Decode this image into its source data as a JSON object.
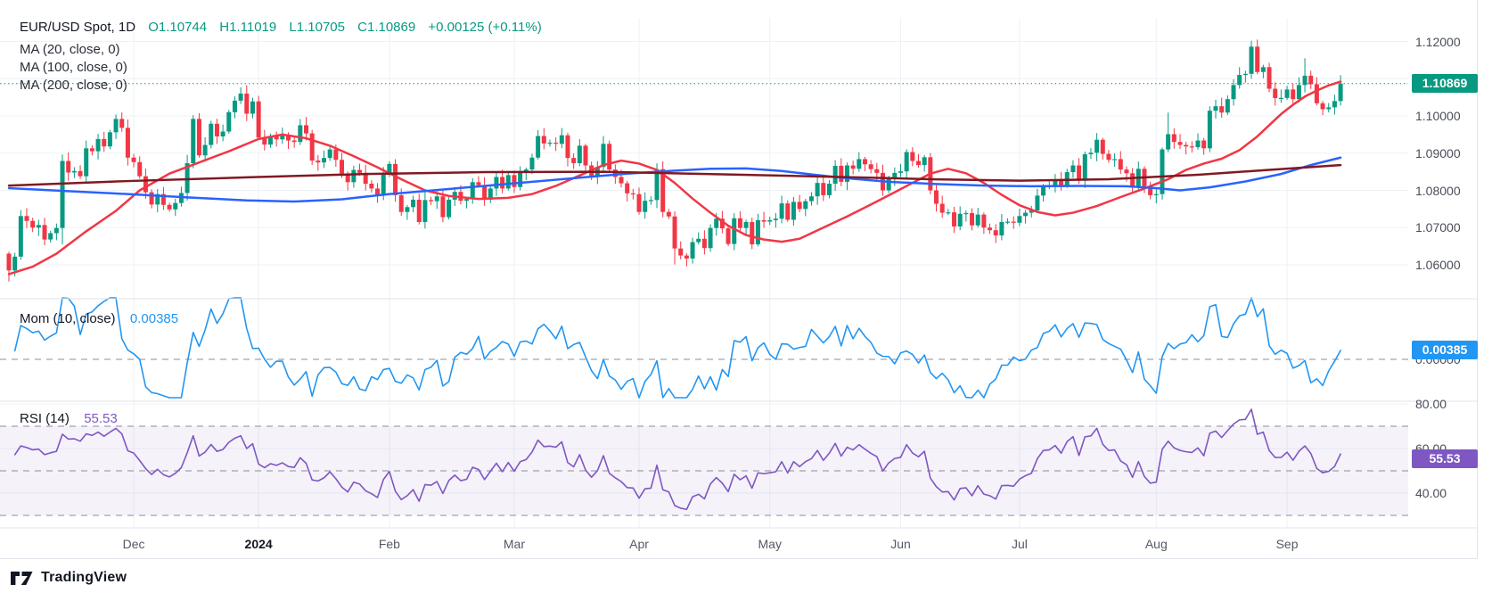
{
  "header": {
    "symbol_tf": "EUR/USD Spot, 1D",
    "open": "O1.10744",
    "high": "H1.11019",
    "low": "L1.10705",
    "close": "C1.10869",
    "change": "+0.00125 (+0.11%)"
  },
  "overlays": [
    {
      "label": "MA (20, close, 0)"
    },
    {
      "label": "MA (100, close, 0)"
    },
    {
      "label": "MA (200, close, 0)"
    }
  ],
  "panes": {
    "momentum": {
      "label": "Mom (10, close)",
      "value": "0.00385"
    },
    "rsi": {
      "label": "RSI (14)",
      "value": "55.53"
    }
  },
  "badges": {
    "price": "1.10869",
    "momentum": "0.00385",
    "rsi": "55.53"
  },
  "axes": {
    "price_ticks": [
      {
        "label": "1.12000",
        "value": 1.12
      },
      {
        "label": "1.11000",
        "value": 1.11
      },
      {
        "label": "1.10000",
        "value": 1.1
      },
      {
        "label": "1.09000",
        "value": 1.09
      },
      {
        "label": "1.08000",
        "value": 1.08
      },
      {
        "label": "1.07000",
        "value": 1.07
      },
      {
        "label": "1.06000",
        "value": 1.06
      }
    ],
    "mom_zero_label": "0.00000",
    "rsi_ticks": [
      {
        "label": "80.00",
        "value": 80
      },
      {
        "label": "60.00",
        "value": 60
      },
      {
        "label": "40.00",
        "value": 40
      }
    ],
    "time_labels": [
      {
        "label": "Dec",
        "bar": 21,
        "bold": false
      },
      {
        "label": "2024",
        "bar": 42,
        "bold": true
      },
      {
        "label": "Feb",
        "bar": 64,
        "bold": false
      },
      {
        "label": "Mar",
        "bar": 85,
        "bold": false
      },
      {
        "label": "Apr",
        "bar": 106,
        "bold": false
      },
      {
        "label": "May",
        "bar": 128,
        "bold": false
      },
      {
        "label": "Jun",
        "bar": 150,
        "bold": false
      },
      {
        "label": "Jul",
        "bar": 170,
        "bold": false
      },
      {
        "label": "Aug",
        "bar": 193,
        "bold": false
      },
      {
        "label": "Sep",
        "bar": 215,
        "bold": false
      }
    ]
  },
  "footer": {
    "brand": "TradingView"
  },
  "colors": {
    "up": "#089981",
    "down": "#f23645",
    "ma20": "#f23645",
    "ma100": "#2962ff",
    "ma200": "#801922",
    "momentum": "#2196f3",
    "rsi": "#7e57c2",
    "rsi_band_fill": "rgba(126,87,194,0.08)",
    "grid": "#eef1f6",
    "divider": "#e0e3eb",
    "dashed": "#8b8e98",
    "last_price_line": "#089981",
    "badge_price_bg": "#089981",
    "badge_mom_bg": "#2196f3",
    "badge_rsi_bg": "#7e57c2"
  },
  "chart_data": [
    {
      "type": "candlestick",
      "title": "EUR/USD Spot, 1D",
      "last_ohlc": {
        "open": 1.10744,
        "high": 1.11019,
        "low": 1.10705,
        "close": 1.10869,
        "change": 0.00125,
        "change_pct": 0.11
      },
      "ylim": [
        1.055,
        1.125
      ],
      "y_ticks": [
        1.12,
        1.11,
        1.1,
        1.09,
        1.08,
        1.07,
        1.06
      ],
      "x_range": [
        "Nov 2023",
        "Sep 2024"
      ],
      "first_open": 1.063,
      "closes": [
        1.0585,
        1.0622,
        1.0731,
        1.0718,
        1.07,
        1.0707,
        1.0668,
        1.0685,
        1.0699,
        1.0879,
        1.0848,
        1.0852,
        1.0838,
        1.0913,
        1.0905,
        1.0938,
        1.0918,
        1.0956,
        1.0992,
        1.0968,
        1.0888,
        1.0876,
        1.0838,
        1.0795,
        1.0762,
        1.079,
        1.0761,
        1.0749,
        1.0766,
        1.0793,
        1.0873,
        1.0992,
        1.0894,
        1.0922,
        1.0979,
        1.0945,
        1.0958,
        1.101,
        1.1041,
        1.106,
        1.1006,
        1.1039,
        1.0942,
        1.0923,
        1.0945,
        1.0937,
        1.095,
        1.0934,
        1.093,
        1.0975,
        1.0953,
        1.088,
        1.0875,
        1.0887,
        1.091,
        1.0882,
        1.0845,
        1.0822,
        1.0855,
        1.0847,
        1.0818,
        1.0805,
        1.0788,
        1.0843,
        1.0871,
        1.0787,
        1.0742,
        1.0755,
        1.0775,
        1.0715,
        1.0774,
        1.0771,
        1.0784,
        1.0728,
        1.0775,
        1.0796,
        1.0772,
        1.0777,
        1.0822,
        1.0814,
        1.0775,
        1.0805,
        1.0836,
        1.0805,
        1.0841,
        1.0809,
        1.0847,
        1.0856,
        1.0888,
        1.0946,
        1.0926,
        1.0928,
        1.0925,
        1.0948,
        1.0887,
        1.0873,
        1.092,
        1.0867,
        1.0839,
        1.0863,
        1.0925,
        1.0856,
        1.0836,
        1.0819,
        1.0792,
        1.079,
        1.0742,
        1.0772,
        1.0774,
        1.0857,
        1.0742,
        1.073,
        1.0644,
        1.0625,
        1.0617,
        1.0661,
        1.067,
        1.0645,
        1.0699,
        1.0724,
        1.0698,
        1.0656,
        1.0725,
        1.0699,
        1.0715,
        1.0655,
        1.072,
        1.0716,
        1.072,
        1.0724,
        1.0765,
        1.0721,
        1.0769,
        1.075,
        1.0771,
        1.0784,
        1.082,
        1.0787,
        1.0818,
        1.0866,
        1.0823,
        1.0867,
        1.0858,
        1.0884,
        1.087,
        1.0857,
        1.0847,
        1.08,
        1.083,
        1.0847,
        1.0851,
        1.0903,
        1.0879,
        1.0868,
        1.0889,
        1.08,
        1.0764,
        1.074,
        1.0741,
        1.0703,
        1.0737,
        1.0739,
        1.0706,
        1.0735,
        1.07,
        1.0693,
        1.0679,
        1.0715,
        1.0716,
        1.0713,
        1.0731,
        1.074,
        1.0746,
        1.0786,
        1.0812,
        1.0814,
        1.0828,
        1.0812,
        1.0849,
        1.0867,
        1.0826,
        1.0897,
        1.0901,
        1.0936,
        1.0898,
        1.0882,
        1.0884,
        1.0856,
        1.0846,
        1.081,
        1.0858,
        1.0811,
        1.0787,
        1.079,
        1.091,
        1.0951,
        1.093,
        1.0922,
        1.0918,
        1.0916,
        1.0934,
        1.0913,
        1.1014,
        1.1026,
        1.1009,
        1.1045,
        1.1083,
        1.111,
        1.1113,
        1.1186,
        1.1118,
        1.1131,
        1.1073,
        1.1048,
        1.10484,
        1.1071,
        1.1045,
        1.1083,
        1.1108,
        1.1085,
        1.1034,
        1.1018,
        1.1023,
        1.104,
        1.10869
      ],
      "special_wicks": {
        "0": {
          "l": 1.0555
        },
        "9": {
          "l": 1.0655
        },
        "112": {
          "l": 1.0601
        },
        "195": {
          "h": 1.1009
        },
        "209": {
          "h": 1.1202
        },
        "218": {
          "h": 1.1155
        }
      },
      "series": [
        {
          "name": "MA (20, close, 0)",
          "color": "#f23645",
          "anchors": [
            [
              0,
              1.0575
            ],
            [
              4,
              1.0595
            ],
            [
              8,
              1.063
            ],
            [
              13,
              1.069
            ],
            [
              18,
              1.0745
            ],
            [
              22,
              1.08
            ],
            [
              27,
              1.0845
            ],
            [
              32,
              1.0875
            ],
            [
              37,
              1.0905
            ],
            [
              42,
              1.0938
            ],
            [
              46,
              1.095
            ],
            [
              50,
              1.094
            ],
            [
              54,
              1.092
            ],
            [
              58,
              1.0892
            ],
            [
              62,
              1.0862
            ],
            [
              66,
              1.083
            ],
            [
              70,
              1.08
            ],
            [
              74,
              1.0785
            ],
            [
              79,
              1.0777
            ],
            [
              84,
              1.078
            ],
            [
              88,
              1.079
            ],
            [
              92,
              1.0812
            ],
            [
              96,
              1.084
            ],
            [
              100,
              1.0868
            ],
            [
              103,
              1.088
            ],
            [
              106,
              1.0872
            ],
            [
              109,
              1.0855
            ],
            [
              112,
              1.082
            ],
            [
              115,
              1.0778
            ],
            [
              118,
              1.074
            ],
            [
              121,
              1.0705
            ],
            [
              124,
              1.068
            ],
            [
              127,
              1.0668
            ],
            [
              130,
              1.0662
            ],
            [
              133,
              1.067
            ],
            [
              137,
              1.07
            ],
            [
              141,
              1.073
            ],
            [
              145,
              1.0762
            ],
            [
              149,
              1.0795
            ],
            [
              152,
              1.082
            ],
            [
              155,
              1.0845
            ],
            [
              158,
              1.0858
            ],
            [
              161,
              1.0846
            ],
            [
              164,
              1.082
            ],
            [
              167,
              1.0788
            ],
            [
              170,
              1.076
            ],
            [
              173,
              1.0742
            ],
            [
              176,
              1.0733
            ],
            [
              179,
              1.074
            ],
            [
              183,
              1.0758
            ],
            [
              187,
              1.0782
            ],
            [
              191,
              1.0805
            ],
            [
              195,
              1.083
            ],
            [
              198,
              1.0855
            ],
            [
              201,
              1.0872
            ],
            [
              204,
              1.0885
            ],
            [
              207,
              1.0908
            ],
            [
              210,
              1.0945
            ],
            [
              212,
              1.0975
            ],
            [
              214,
              1.1005
            ],
            [
              216,
              1.103
            ],
            [
              218,
              1.1052
            ],
            [
              220,
              1.1068
            ],
            [
              222,
              1.1082
            ],
            [
              224,
              1.1092
            ]
          ]
        },
        {
          "name": "MA (100, close, 0)",
          "color": "#2962ff",
          "anchors": [
            [
              0,
              1.0806
            ],
            [
              10,
              1.0798
            ],
            [
              20,
              1.079
            ],
            [
              30,
              1.0781
            ],
            [
              40,
              1.0773
            ],
            [
              48,
              1.077
            ],
            [
              56,
              1.0776
            ],
            [
              64,
              1.079
            ],
            [
              72,
              1.0801
            ],
            [
              80,
              1.0812
            ],
            [
              88,
              1.0823
            ],
            [
              96,
              1.0834
            ],
            [
              104,
              1.0845
            ],
            [
              112,
              1.0853
            ],
            [
              118,
              1.0858
            ],
            [
              124,
              1.0859
            ],
            [
              130,
              1.0852
            ],
            [
              136,
              1.0841
            ],
            [
              142,
              1.0831
            ],
            [
              148,
              1.0823
            ],
            [
              156,
              1.0817
            ],
            [
              164,
              1.0813
            ],
            [
              172,
              1.0811
            ],
            [
              180,
              1.0812
            ],
            [
              188,
              1.0811
            ],
            [
              193,
              1.0806
            ],
            [
              197,
              1.08
            ],
            [
              202,
              1.0808
            ],
            [
              208,
              1.0824
            ],
            [
              214,
              1.0844
            ],
            [
              219,
              1.0868
            ],
            [
              224,
              1.0888
            ]
          ]
        },
        {
          "name": "MA (200, close, 0)",
          "color": "#801922",
          "anchors": [
            [
              0,
              1.0813
            ],
            [
              20,
              1.0825
            ],
            [
              40,
              1.0835
            ],
            [
              60,
              1.0844
            ],
            [
              80,
              1.0849
            ],
            [
              100,
              1.085
            ],
            [
              120,
              1.0843
            ],
            [
              140,
              1.0836
            ],
            [
              155,
              1.083
            ],
            [
              170,
              1.0826
            ],
            [
              185,
              1.083
            ],
            [
              200,
              1.0842
            ],
            [
              212,
              1.0855
            ],
            [
              224,
              1.0868
            ]
          ]
        }
      ],
      "last_price_line": 1.10869
    },
    {
      "type": "line",
      "name": "Mom (10, close)",
      "period": 10,
      "source": "close",
      "last_value": 0.00385,
      "zero_line": 0,
      "color": "#2196f3",
      "derived_from": "closes of chart 0 (value[i] = close[i] - close[i-10])"
    },
    {
      "type": "line",
      "name": "RSI (14)",
      "period": 14,
      "last_value": 55.53,
      "upper_band": 70,
      "middle_band": 50,
      "lower_band": 30,
      "y_ticks": [
        80,
        60,
        40
      ],
      "color": "#7e57c2",
      "derived_from": "closes of chart 0 (Wilder RSI, period 14)"
    }
  ]
}
